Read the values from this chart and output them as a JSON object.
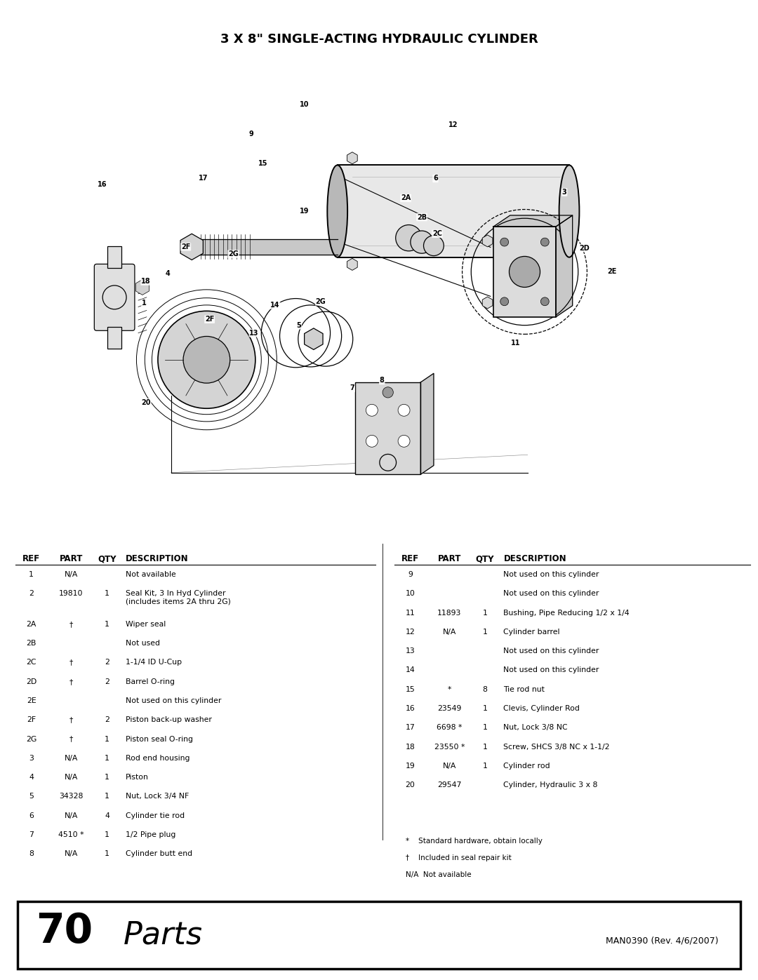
{
  "title": "3 X 8\" SINGLE-ACTING HYDRAULIC CYLINDER",
  "bg_color": "#ffffff",
  "title_fontsize": 13,
  "title_fontweight": "bold",
  "footer_number": "70",
  "footer_text": "Parts",
  "footer_right": "MAN0390 (Rev. 4/6/2007)",
  "left_headers": [
    "REF",
    "PART",
    "QTY",
    "DESCRIPTION"
  ],
  "left_rows": [
    [
      "1",
      "N/A",
      "",
      "Not available"
    ],
    [
      "2",
      "19810",
      "1",
      "Seal Kit, 3 In Hyd Cylinder\n(includes items 2A thru 2G)"
    ],
    [
      "2A",
      "†",
      "1",
      "Wiper seal"
    ],
    [
      "2B",
      "",
      "",
      "Not used"
    ],
    [
      "2C",
      "†",
      "2",
      "1-1/4 ID U-Cup"
    ],
    [
      "2D",
      "†",
      "2",
      "Barrel O-ring"
    ],
    [
      "2E",
      "",
      "",
      "Not used on this cylinder"
    ],
    [
      "2F",
      "†",
      "2",
      "Piston back-up washer"
    ],
    [
      "2G",
      "†",
      "1",
      "Piston seal O-ring"
    ],
    [
      "3",
      "N/A",
      "1",
      "Rod end housing"
    ],
    [
      "4",
      "N/A",
      "1",
      "Piston"
    ],
    [
      "5",
      "34328",
      "1",
      "Nut, Lock 3/4 NF"
    ],
    [
      "6",
      "N/A",
      "4",
      "Cylinder tie rod"
    ],
    [
      "7",
      "4510 *",
      "1",
      "1/2 Pipe plug"
    ],
    [
      "8",
      "N/A",
      "1",
      "Cylinder butt end"
    ]
  ],
  "right_headers": [
    "REF",
    "PART",
    "QTY",
    "DESCRIPTION"
  ],
  "right_rows": [
    [
      "9",
      "",
      "",
      "Not used on this cylinder"
    ],
    [
      "10",
      "",
      "",
      "Not used on this cylinder"
    ],
    [
      "11",
      "11893",
      "1",
      "Bushing, Pipe Reducing 1/2 x 1/4"
    ],
    [
      "12",
      "N/A",
      "1",
      "Cylinder barrel"
    ],
    [
      "13",
      "",
      "",
      "Not used on this cylinder"
    ],
    [
      "14",
      "",
      "",
      "Not used on this cylinder"
    ],
    [
      "15",
      "*",
      "8",
      "Tie rod nut"
    ],
    [
      "16",
      "23549",
      "1",
      "Clevis, Cylinder Rod"
    ],
    [
      "17",
      "6698 *",
      "1",
      "Nut, Lock 3/8 NC"
    ],
    [
      "18",
      "23550 *",
      "1",
      "Screw, SHCS 3/8 NC x 1-1/2"
    ],
    [
      "19",
      "N/A",
      "1",
      "Cylinder rod"
    ],
    [
      "20",
      "29547",
      "",
      "Cylinder, Hydraulic 3 x 8"
    ]
  ],
  "footnotes": [
    "*    Standard hardware, obtain locally",
    "†    Included in seal repair kit",
    "N/A  Not available"
  ]
}
